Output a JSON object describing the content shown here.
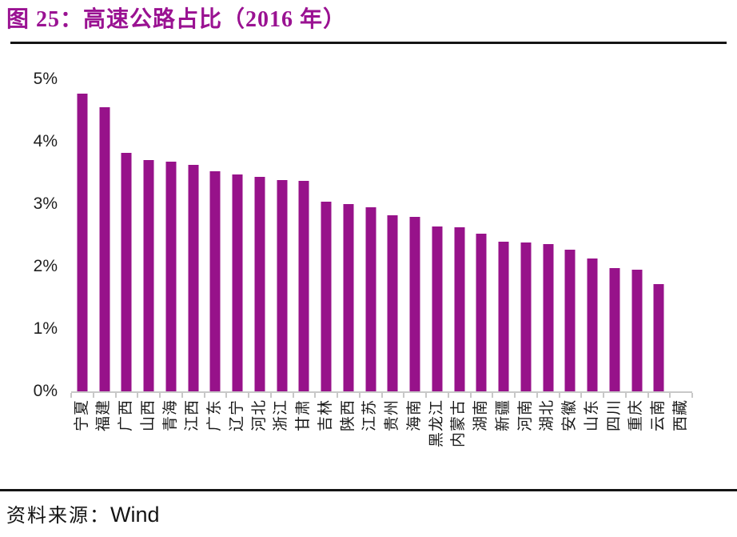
{
  "header": {
    "title": "图 25：高速公路占比（2016 年）"
  },
  "footer": {
    "source_label": "资料来源：",
    "source_value": "Wind"
  },
  "colors": {
    "accent_title": "#9A1292",
    "bar": "#97128A",
    "axis_line": "#C8C8C8",
    "text": "#1A1A1A"
  },
  "chart_data": {
    "type": "bar",
    "title": "高速公路占比（2016 年）",
    "xlabel": "",
    "ylabel": "",
    "ylim": [
      0,
      5
    ],
    "ytick_labels_top_down": [
      "5%",
      "4%",
      "3%",
      "2%",
      "1%",
      "0%"
    ],
    "grid": false,
    "legend": "none",
    "bar_color": "#97128A",
    "categories": [
      "宁夏",
      "福建",
      "广西",
      "山西",
      "青海",
      "江西",
      "广东",
      "辽宁",
      "河北",
      "浙江",
      "甘肃",
      "吉林",
      "陕西",
      "江苏",
      "贵州",
      "海南",
      "黑龙江",
      "内蒙古",
      "湖南",
      "新疆",
      "河南",
      "湖北",
      "安徽",
      "山东",
      "四川",
      "重庆",
      "云南",
      "西藏"
    ],
    "values": [
      4.77,
      4.55,
      3.82,
      3.7,
      3.68,
      3.63,
      3.52,
      3.47,
      3.43,
      3.38,
      3.37,
      3.04,
      3.0,
      2.95,
      2.82,
      2.8,
      2.64,
      2.63,
      2.52,
      2.4,
      2.39,
      2.36,
      2.27,
      2.13,
      1.98,
      1.95,
      1.72,
      0
    ]
  }
}
